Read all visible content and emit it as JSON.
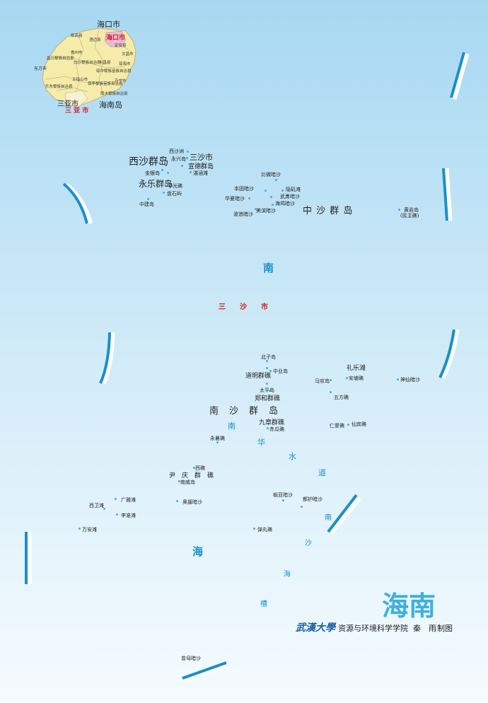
{
  "inset": {
    "haikou_top": "海口市",
    "haikou_red": "海口市",
    "sanya_black": "三亚市",
    "sanya_red": "三 亚 市",
    "hainan_island": "海南岛",
    "counties": [
      "临高县",
      "澄迈县",
      "儋州市",
      "白沙黎族自治县",
      "昌江黎族自治县",
      "屯昌县",
      "东方市",
      "琼中黎族苗族自治县",
      "五指山市",
      "乐东黎族自治县",
      "保亭黎族苗族自治县",
      "陵水黎族自治县",
      "定安县",
      "文昌市",
      "琼海市",
      "万宁市"
    ]
  },
  "labels": {
    "xisha": "西沙群岛",
    "xishazhou": "西沙洲",
    "yongxing": "永兴岛",
    "sansha_city": "三沙市",
    "xuande": "宣德群岛",
    "zhanhan": "湛涵滩",
    "jinyin": "金银岛",
    "yongle": "永乐群岛",
    "huaguang": "华光礁",
    "panshiyu": "盘石屿",
    "zhongjian": "中建岛",
    "beibianan": "比微暗沙",
    "bengu": "本固暗沙",
    "yindi": "隐矶滩",
    "wuyong": "武勇暗沙",
    "huaxia": "华夏暗沙",
    "haijiu": "海鸠暗沙",
    "bobo": "波浪暗沙",
    "meixi": "美滨暗沙",
    "zhongsha": "中 沙 群 岛",
    "huangyan": "黄岩岛",
    "minzhu": "(民主礁)",
    "nan_sea_top": "南",
    "sansha_red": "三　　沙　　市",
    "beizi": "北子岛",
    "daoming": "道明群礁",
    "zhongye": "中业岛",
    "taiping": "太平岛",
    "zhenghe": "郑和群礁",
    "nansha": "南　沙　群　岛",
    "jiuzhang": "九章群礁",
    "chigua": "赤瓜礁",
    "majia": "马欢岛",
    "lile": "礼乐滩",
    "andu": "安塘礁",
    "shenxian": "神仙暗沙",
    "wufang": "五方礁",
    "renai": "仁爱礁",
    "xianbin": "仙宾礁",
    "yongshu": "永暑礁",
    "xijiao": "西礁",
    "yinqing": "尹　庆　群　礁",
    "nanwei": "南威岛",
    "xiwei": "西卫滩",
    "guangya": "广雅滩",
    "aoyuan": "奥援暗沙",
    "lijiao": "李准滩",
    "wanan": "万安滩",
    "yubei": "榆亚暗沙",
    "dubu": "都护暗沙",
    "danwan": "弹丸礁",
    "zengmu": "曾母暗沙",
    "nanhua": [
      "南",
      "华",
      "水",
      "道"
    ],
    "nanhai_trough": [
      "南",
      "沙",
      "海",
      "槽"
    ],
    "hai": "海"
  },
  "footer": {
    "title": "海南",
    "university": "武漢大學",
    "school": "资源与环境科学学院",
    "author": "秦　雨",
    "made": "制图"
  },
  "colors": {
    "sea_top": "#a7d8f2",
    "sea_bottom": "#f5fbfe",
    "boundary": "#1b8fc9",
    "accent_red": "#d21b1b",
    "title_cyan": "#3fb0dc"
  }
}
